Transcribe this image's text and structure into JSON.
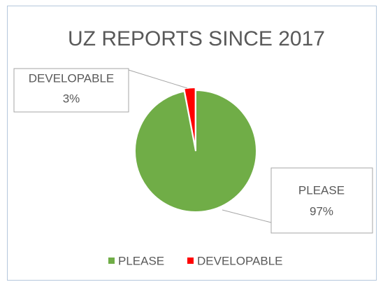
{
  "chart_data": {
    "type": "pie",
    "title": "UZ REPORTS SINCE 2017",
    "categories": [
      "PLEASE",
      "DEVELOPABLE"
    ],
    "values": [
      97,
      3
    ],
    "value_labels": [
      "97%",
      "3%"
    ],
    "colors": [
      "#70ad47",
      "#ff0000"
    ],
    "legend": "bottom"
  }
}
